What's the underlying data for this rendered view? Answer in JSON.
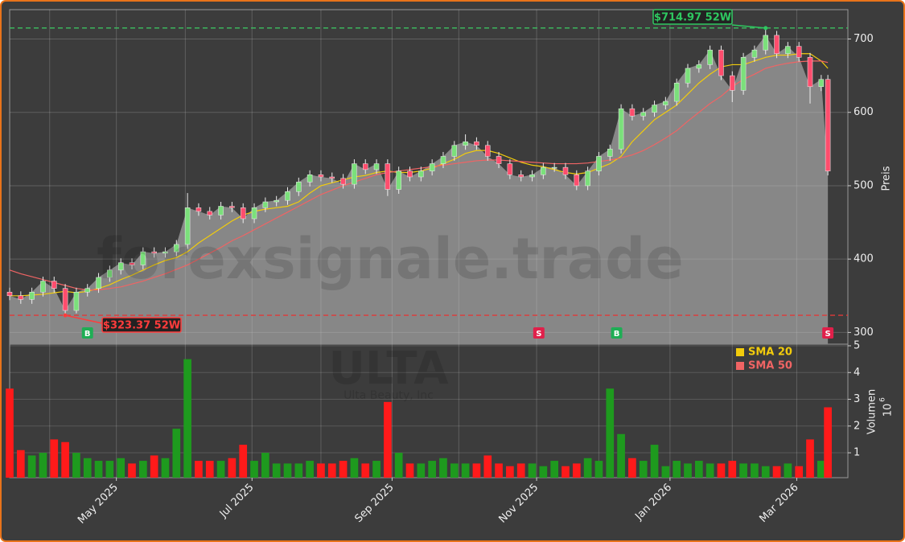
{
  "chart_data": {
    "type": "candlestick",
    "watermark": "forexsignale.trade",
    "ticker": "ULTA",
    "company": "Ulta Beauty, Inc",
    "ylabel": "Preis",
    "x": [
      0,
      5,
      10,
      15,
      20,
      25,
      30,
      35,
      40,
      45,
      50,
      55,
      60,
      65,
      70,
      75,
      80,
      85,
      90,
      95,
      100,
      105,
      110,
      115,
      120,
      125,
      130,
      135,
      140,
      145,
      150,
      155,
      160,
      165,
      170,
      175,
      180,
      185,
      190,
      195,
      200,
      205,
      210,
      215,
      220,
      225,
      230,
      235,
      240,
      245,
      250,
      255,
      260,
      265,
      270,
      275,
      280,
      285,
      290,
      295,
      300,
      305,
      310,
      315,
      320,
      325,
      330,
      335,
      340,
      345,
      350,
      355,
      360,
      365,
      368
    ],
    "open": [
      355,
      350,
      345,
      355,
      370,
      360,
      330,
      355,
      360,
      375,
      385,
      395,
      392,
      410,
      408,
      410,
      420,
      470,
      465,
      460,
      472,
      470,
      455,
      470,
      478,
      480,
      492,
      505,
      515,
      512,
      510,
      502,
      530,
      522,
      530,
      495,
      520,
      512,
      520,
      530,
      540,
      555,
      560,
      555,
      540,
      530,
      515,
      512,
      515,
      525,
      525,
      515,
      500,
      520,
      540,
      550,
      605,
      595,
      600,
      610,
      615,
      640,
      660,
      665,
      685,
      650,
      630,
      675,
      685,
      705,
      680,
      690,
      675,
      635,
      645
    ],
    "high": [
      361,
      356,
      361,
      376,
      376,
      366,
      361,
      366,
      381,
      391,
      401,
      401,
      416,
      416,
      416,
      426,
      490,
      476,
      471,
      478,
      478,
      476,
      476,
      484,
      486,
      498,
      511,
      521,
      521,
      518,
      516,
      536,
      536,
      536,
      536,
      526,
      526,
      526,
      536,
      546,
      561,
      570,
      566,
      561,
      546,
      536,
      521,
      521,
      531,
      531,
      531,
      521,
      526,
      546,
      556,
      611,
      611,
      606,
      616,
      621,
      646,
      666,
      671,
      691,
      691,
      656,
      681,
      691,
      714.97,
      711,
      696,
      696,
      681,
      651,
      651
    ],
    "low": [
      344,
      339,
      339,
      349,
      354,
      323.37,
      326,
      349,
      354,
      369,
      379,
      386,
      386,
      402,
      402,
      404,
      414,
      459,
      454,
      454,
      464,
      449,
      449,
      464,
      472,
      474,
      486,
      499,
      506,
      504,
      496,
      496,
      516,
      516,
      486,
      489,
      506,
      506,
      514,
      524,
      534,
      549,
      549,
      534,
      524,
      509,
      506,
      506,
      509,
      519,
      509,
      494,
      494,
      514,
      534,
      544,
      589,
      589,
      594,
      604,
      609,
      634,
      654,
      659,
      644,
      614,
      624,
      669,
      679,
      674,
      674,
      669,
      612,
      629,
      514
    ],
    "close": [
      350,
      345,
      355,
      370,
      360,
      330,
      355,
      360,
      375,
      385,
      395,
      392,
      410,
      408,
      410,
      420,
      470,
      465,
      460,
      472,
      470,
      455,
      470,
      478,
      480,
      492,
      505,
      515,
      512,
      510,
      502,
      530,
      522,
      530,
      495,
      520,
      512,
      520,
      530,
      540,
      555,
      560,
      555,
      540,
      530,
      515,
      512,
      515,
      525,
      525,
      515,
      500,
      520,
      540,
      550,
      605,
      595,
      600,
      610,
      615,
      640,
      660,
      665,
      685,
      650,
      630,
      675,
      685,
      705,
      680,
      690,
      675,
      635,
      645,
      520
    ],
    "series": [
      {
        "name": "SMA 20",
        "color": "#f2cc0c",
        "values": [
          350,
          350,
          351,
          352,
          354,
          356,
          354,
          356,
          360,
          365,
          372,
          378,
          385,
          392,
          398,
          402,
          410,
          422,
          432,
          442,
          452,
          460,
          465,
          468,
          470,
          472,
          478,
          490,
          500,
          504,
          508,
          512,
          514,
          518,
          520,
          518,
          518,
          520,
          524,
          530,
          536,
          544,
          548,
          548,
          544,
          538,
          532,
          528,
          526,
          522,
          518,
          516,
          518,
          524,
          530,
          540,
          560,
          575,
          590,
          600,
          610,
          625,
          640,
          652,
          662,
          665,
          665,
          670,
          675,
          678,
          678,
          680,
          680,
          670,
          660
        ]
      },
      {
        "name": "SMA 50",
        "color": "#f06464",
        "values": [
          385,
          380,
          376,
          372,
          368,
          364,
          360,
          358,
          358,
          360,
          362,
          366,
          370,
          375,
          380,
          386,
          392,
          400,
          408,
          416,
          425,
          432,
          440,
          448,
          456,
          464,
          472,
          480,
          488,
          494,
          500,
          505,
          510,
          515,
          518,
          520,
          522,
          524,
          526,
          528,
          530,
          532,
          534,
          535,
          535,
          534,
          533,
          532,
          531,
          530,
          530,
          530,
          531,
          533,
          535,
          538,
          542,
          548,
          556,
          565,
          575,
          588,
          600,
          612,
          622,
          635,
          645,
          652,
          660,
          664,
          667,
          669,
          670,
          670,
          668
        ]
      }
    ],
    "high_52w": {
      "value": 714.97,
      "x": 340,
      "label": "$714.97 52W"
    },
    "low_52w": {
      "value": 323.37,
      "x": 25,
      "label": "$323.37 52W"
    },
    "signals": [
      {
        "x": 35,
        "label": "B"
      },
      {
        "x": 238,
        "label": "S"
      },
      {
        "x": 273,
        "label": "B"
      },
      {
        "x": 368,
        "label": "S"
      }
    ],
    "xlim": [
      0,
      377
    ],
    "xticks": [
      {
        "value": 48,
        "label": "May 2025"
      },
      {
        "value": 109,
        "label": "Jul 2025"
      },
      {
        "value": 172,
        "label": "Sep 2025"
      },
      {
        "value": 237,
        "label": "Nov 2025"
      },
      {
        "value": 297,
        "label": "Jan 2026"
      },
      {
        "value": 354,
        "label": "Mar 2026"
      }
    ],
    "xminorticks": [
      18,
      79,
      140,
      202,
      265,
      325
    ],
    "ylim": [
      284,
      740
    ],
    "yticks": [
      300,
      400,
      500,
      600,
      700
    ],
    "grid": true,
    "volume": {
      "label": "Volumen",
      "multiplier": "10",
      "exponent": "6",
      "values": [
        3.4,
        1.1,
        0.9,
        1.0,
        1.5,
        1.4,
        1.0,
        0.8,
        0.7,
        0.7,
        0.8,
        0.6,
        0.7,
        0.9,
        0.8,
        1.9,
        4.5,
        0.7,
        0.7,
        0.7,
        0.8,
        1.3,
        0.7,
        1.0,
        0.6,
        0.6,
        0.6,
        0.7,
        0.6,
        0.6,
        0.7,
        0.8,
        0.6,
        0.7,
        2.9,
        1.0,
        0.6,
        0.6,
        0.7,
        0.8,
        0.6,
        0.6,
        0.6,
        0.9,
        0.6,
        0.5,
        0.6,
        0.6,
        0.5,
        0.7,
        0.5,
        0.6,
        0.8,
        0.7,
        3.4,
        1.7,
        0.8,
        0.7,
        1.3,
        0.5,
        0.7,
        0.6,
        0.7,
        0.6,
        0.6,
        0.7,
        0.6,
        0.6,
        0.5,
        0.5,
        0.6,
        0.5,
        1.5,
        0.7,
        2.7
      ],
      "ylim": [
        0.07,
        5.06
      ],
      "yticks": [
        1,
        2,
        3,
        4,
        5
      ]
    }
  }
}
